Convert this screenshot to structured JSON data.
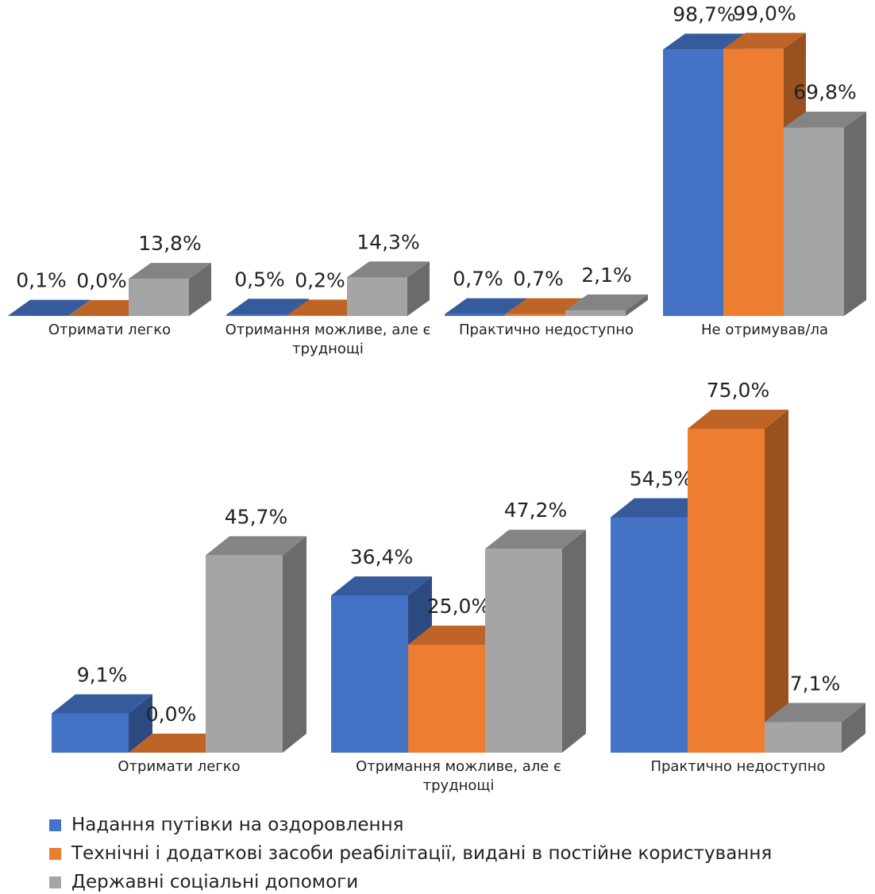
{
  "chart_data": [
    {
      "type": "bar3d",
      "categories": [
        "Отримати легко",
        "Отримання можливе, але є труднощі",
        "Практично недоступно",
        "Не отримував/ла"
      ],
      "series": [
        {
          "name": "Надання путівки на оздоровлення",
          "color": "#4472c4",
          "values": [
            0.1,
            0.5,
            0.7,
            98.7
          ],
          "value_labels": [
            "0,1%",
            "0,5%",
            "0,7%",
            "98,7%"
          ]
        },
        {
          "name": "Технічні і додаткові засоби реабілітації, видані в постійне користування",
          "color": "#ed7d31",
          "values": [
            0.0,
            0.2,
            0.7,
            99.0
          ],
          "value_labels": [
            "0,0%",
            "0,2%",
            "0,7%",
            "99,0%"
          ]
        },
        {
          "name": "Державні соціальні допомоги",
          "color": "#a5a5a5",
          "values": [
            13.8,
            14.3,
            2.1,
            69.8
          ],
          "value_labels": [
            "13,8%",
            "14,3%",
            "2,1%",
            "69,8%"
          ]
        }
      ],
      "ylim": [
        0,
        100
      ]
    },
    {
      "type": "bar3d",
      "categories": [
        "Отримати легко",
        "Отримання можливе, але є труднощі",
        "Практично недоступно"
      ],
      "series": [
        {
          "color": "#4472c4",
          "values": [
            9.1,
            36.4,
            54.5
          ],
          "value_labels": [
            "9,1%",
            "36,4%",
            "54,5%"
          ]
        },
        {
          "color": "#ed7d31",
          "values": [
            0.0,
            25.0,
            75.0
          ],
          "value_labels": [
            "0,0%",
            "25,0%",
            "75,0%"
          ]
        },
        {
          "color": "#a5a5a5",
          "values": [
            45.7,
            47.2,
            7.1
          ],
          "value_labels": [
            "45,7%",
            "47,2%",
            "7,1%"
          ]
        }
      ],
      "ylim": [
        0,
        100
      ]
    }
  ]
}
